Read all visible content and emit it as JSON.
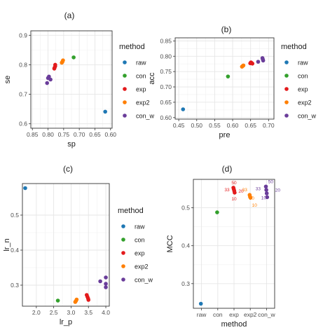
{
  "palette": {
    "raw": "#1f78b4",
    "con": "#33a02c",
    "exp": "#e31a1c",
    "exp2": "#ff7f00",
    "con_w": "#6a3d9a"
  },
  "legend": {
    "title": "method",
    "items": [
      "raw",
      "con",
      "exp",
      "exp2",
      "con_w"
    ]
  },
  "chart_data": [
    {
      "type": "scatter",
      "title": "(a)",
      "xlabel": "sp",
      "ylabel": "se",
      "x_reversed": true,
      "xlim": [
        0.855,
        0.595
      ],
      "ylim": [
        0.585,
        0.915
      ],
      "xticks": [
        0.85,
        0.8,
        0.75,
        0.7,
        0.65,
        0.6
      ],
      "xtick_labels": [
        "0.85",
        "0.80",
        "0.75",
        "0.70",
        "0.65",
        "0.60"
      ],
      "yticks": [
        0.6,
        0.7,
        0.8,
        0.9
      ],
      "ytick_labels": [
        "0.6",
        "0.7",
        "0.8",
        "0.9"
      ],
      "grid": true,
      "legend_position": "right",
      "series": [
        {
          "name": "raw",
          "points": [
            [
              0.617,
              0.641
            ]
          ]
        },
        {
          "name": "con",
          "points": [
            [
              0.718,
              0.825
            ]
          ]
        },
        {
          "name": "exp",
          "points": [
            [
              0.777,
              0.795
            ],
            [
              0.777,
              0.8
            ],
            [
              0.779,
              0.79
            ],
            [
              0.78,
              0.787
            ]
          ]
        },
        {
          "name": "exp2",
          "points": [
            [
              0.752,
              0.815
            ],
            [
              0.754,
              0.81
            ],
            [
              0.756,
              0.807
            ]
          ]
        },
        {
          "name": "con_w",
          "points": [
            [
              0.797,
              0.76
            ],
            [
              0.8,
              0.755
            ],
            [
              0.792,
              0.75
            ],
            [
              0.803,
              0.738
            ]
          ]
        }
      ]
    },
    {
      "type": "scatter",
      "title": "(b)",
      "xlabel": "pre",
      "ylabel": "acc",
      "xlim": [
        0.44,
        0.715
      ],
      "ylim": [
        0.595,
        0.86
      ],
      "xticks": [
        0.45,
        0.5,
        0.55,
        0.6,
        0.65,
        0.7
      ],
      "xtick_labels": [
        "0.45",
        "0.50",
        "0.55",
        "0.60",
        "0.65",
        "0.70"
      ],
      "yticks": [
        0.6,
        0.65,
        0.7,
        0.75,
        0.8,
        0.85
      ],
      "ytick_labels": [
        "0.60",
        "0.65",
        "0.70",
        "0.75",
        "0.80",
        "0.85"
      ],
      "grid": true,
      "legend_position": "right",
      "series": [
        {
          "name": "raw",
          "points": [
            [
              0.462,
              0.627
            ]
          ]
        },
        {
          "name": "con",
          "points": [
            [
              0.587,
              0.734
            ]
          ]
        },
        {
          "name": "exp",
          "points": [
            [
              0.651,
              0.78
            ],
            [
              0.653,
              0.778
            ],
            [
              0.655,
              0.776
            ],
            [
              0.649,
              0.777
            ]
          ]
        },
        {
          "name": "exp2",
          "points": [
            [
              0.626,
              0.766
            ],
            [
              0.628,
              0.768
            ],
            [
              0.63,
              0.77
            ]
          ]
        },
        {
          "name": "con_w",
          "points": [
            [
              0.671,
              0.782
            ],
            [
              0.683,
              0.794
            ],
            [
              0.684,
              0.79
            ],
            [
              0.685,
              0.786
            ]
          ]
        }
      ]
    },
    {
      "type": "scatter",
      "title": "(c)",
      "xlabel": "lr_p",
      "ylabel": "lr_n",
      "xlim": [
        1.6,
        4.1
      ],
      "ylim": [
        0.24,
        0.59
      ],
      "xticks": [
        2.0,
        2.5,
        3.0,
        3.5,
        4.0
      ],
      "xtick_labels": [
        "2.0",
        "2.5",
        "3.0",
        "3.5",
        "4.0"
      ],
      "yticks": [
        0.3,
        0.4,
        0.5
      ],
      "ytick_labels": [
        "0.3",
        "0.4",
        "0.5"
      ],
      "grid": true,
      "legend_position": "right",
      "series": [
        {
          "name": "raw",
          "points": [
            [
              1.68,
              0.577
            ]
          ]
        },
        {
          "name": "con",
          "points": [
            [
              2.62,
              0.256
            ]
          ]
        },
        {
          "name": "exp",
          "points": [
            [
              3.45,
              0.272
            ],
            [
              3.47,
              0.267
            ],
            [
              3.49,
              0.262
            ],
            [
              3.5,
              0.258
            ]
          ]
        },
        {
          "name": "exp2",
          "points": [
            [
              3.12,
              0.252
            ],
            [
              3.14,
              0.255
            ],
            [
              3.16,
              0.259
            ]
          ]
        },
        {
          "name": "con_w",
          "points": [
            [
              3.84,
              0.311
            ],
            [
              4.0,
              0.322
            ],
            [
              4.0,
              0.304
            ],
            [
              4.0,
              0.294
            ]
          ]
        }
      ]
    },
    {
      "type": "scatter",
      "title": "(d)",
      "xlabel": "method",
      "ylabel": "MCC",
      "categories": [
        "raw",
        "con",
        "exp",
        "exp2",
        "con_w"
      ],
      "ylim": [
        0.235,
        0.575
      ],
      "yticks": [
        0.3,
        0.4,
        0.5
      ],
      "ytick_labels": [
        "0.3",
        "0.4",
        "0.5"
      ],
      "grid": true,
      "legend_position": "none",
      "series": [
        {
          "name": "raw",
          "category": "raw",
          "points": [
            [
              0,
              0.247
            ]
          ]
        },
        {
          "name": "con",
          "category": "con",
          "points": [
            [
              0,
              0.488
            ]
          ]
        },
        {
          "name": "exp",
          "category": "exp",
          "points": [
            [
              0,
              0.553
            ],
            [
              0,
              0.549
            ],
            [
              0,
              0.545
            ],
            [
              0,
              0.54
            ]
          ]
        },
        {
          "name": "exp2",
          "category": "exp2",
          "points": [
            [
              0,
              0.534
            ],
            [
              0,
              0.529
            ],
            [
              0,
              0.527
            ]
          ]
        },
        {
          "name": "con_w",
          "category": "con_w",
          "points": [
            [
              0,
              0.556
            ],
            [
              0,
              0.547
            ],
            [
              0,
              0.538
            ],
            [
              0,
              0.528
            ]
          ]
        }
      ],
      "annotations": [
        {
          "category": "exp",
          "text": "50"
        },
        {
          "category": "exp",
          "text": "33"
        },
        {
          "category": "exp",
          "text": "20"
        },
        {
          "category": "exp",
          "text": "10"
        },
        {
          "category": "exp2",
          "text": "33"
        },
        {
          "category": "exp2",
          "text": "20"
        },
        {
          "category": "exp2",
          "text": "10"
        },
        {
          "category": "con_w",
          "text": "50"
        },
        {
          "category": "con_w",
          "text": "33"
        },
        {
          "category": "con_w",
          "text": "20"
        },
        {
          "category": "con_w",
          "text": "10"
        }
      ]
    }
  ]
}
